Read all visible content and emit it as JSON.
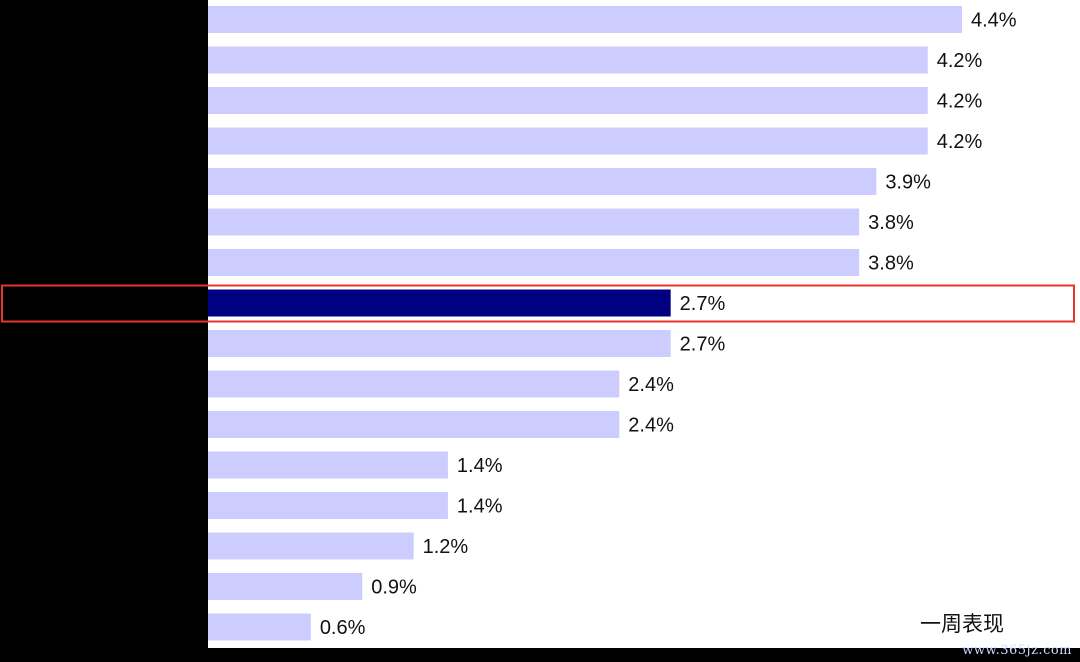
{
  "chart_data": {
    "type": "bar",
    "orientation": "horizontal",
    "categories": [
      "",
      "",
      "",
      "",
      "",
      "",
      "",
      "",
      "",
      "",
      "",
      "",
      "",
      "",
      "",
      ""
    ],
    "values": [
      4.4,
      4.2,
      4.2,
      4.2,
      3.9,
      3.8,
      3.8,
      2.7,
      2.7,
      2.4,
      2.4,
      1.4,
      1.4,
      1.2,
      0.9,
      0.6
    ],
    "data_labels": [
      "4.4%",
      "4.2%",
      "4.2%",
      "4.2%",
      "3.9%",
      "3.8%",
      "3.8%",
      "2.7%",
      "2.7%",
      "2.4%",
      "2.4%",
      "1.4%",
      "1.4%",
      "1.2%",
      "0.9%",
      "0.6%"
    ],
    "highlight_index": 7,
    "series": [
      {
        "name": "一周表现",
        "values": [
          4.4,
          4.2,
          4.2,
          4.2,
          3.9,
          3.8,
          3.8,
          2.7,
          2.7,
          2.4,
          2.4,
          1.4,
          1.4,
          1.2,
          0.9,
          0.6
        ]
      }
    ],
    "xlim": [
      0,
      4.4
    ],
    "legend_position": "bottom-right",
    "grid": false
  },
  "colors": {
    "bar": "#ccccff",
    "highlight_bar": "#000080",
    "highlight_box": "#e8342a",
    "label": "#111111"
  },
  "legend": {
    "label": "一周表现"
  },
  "watermark": "www.365jz.com"
}
